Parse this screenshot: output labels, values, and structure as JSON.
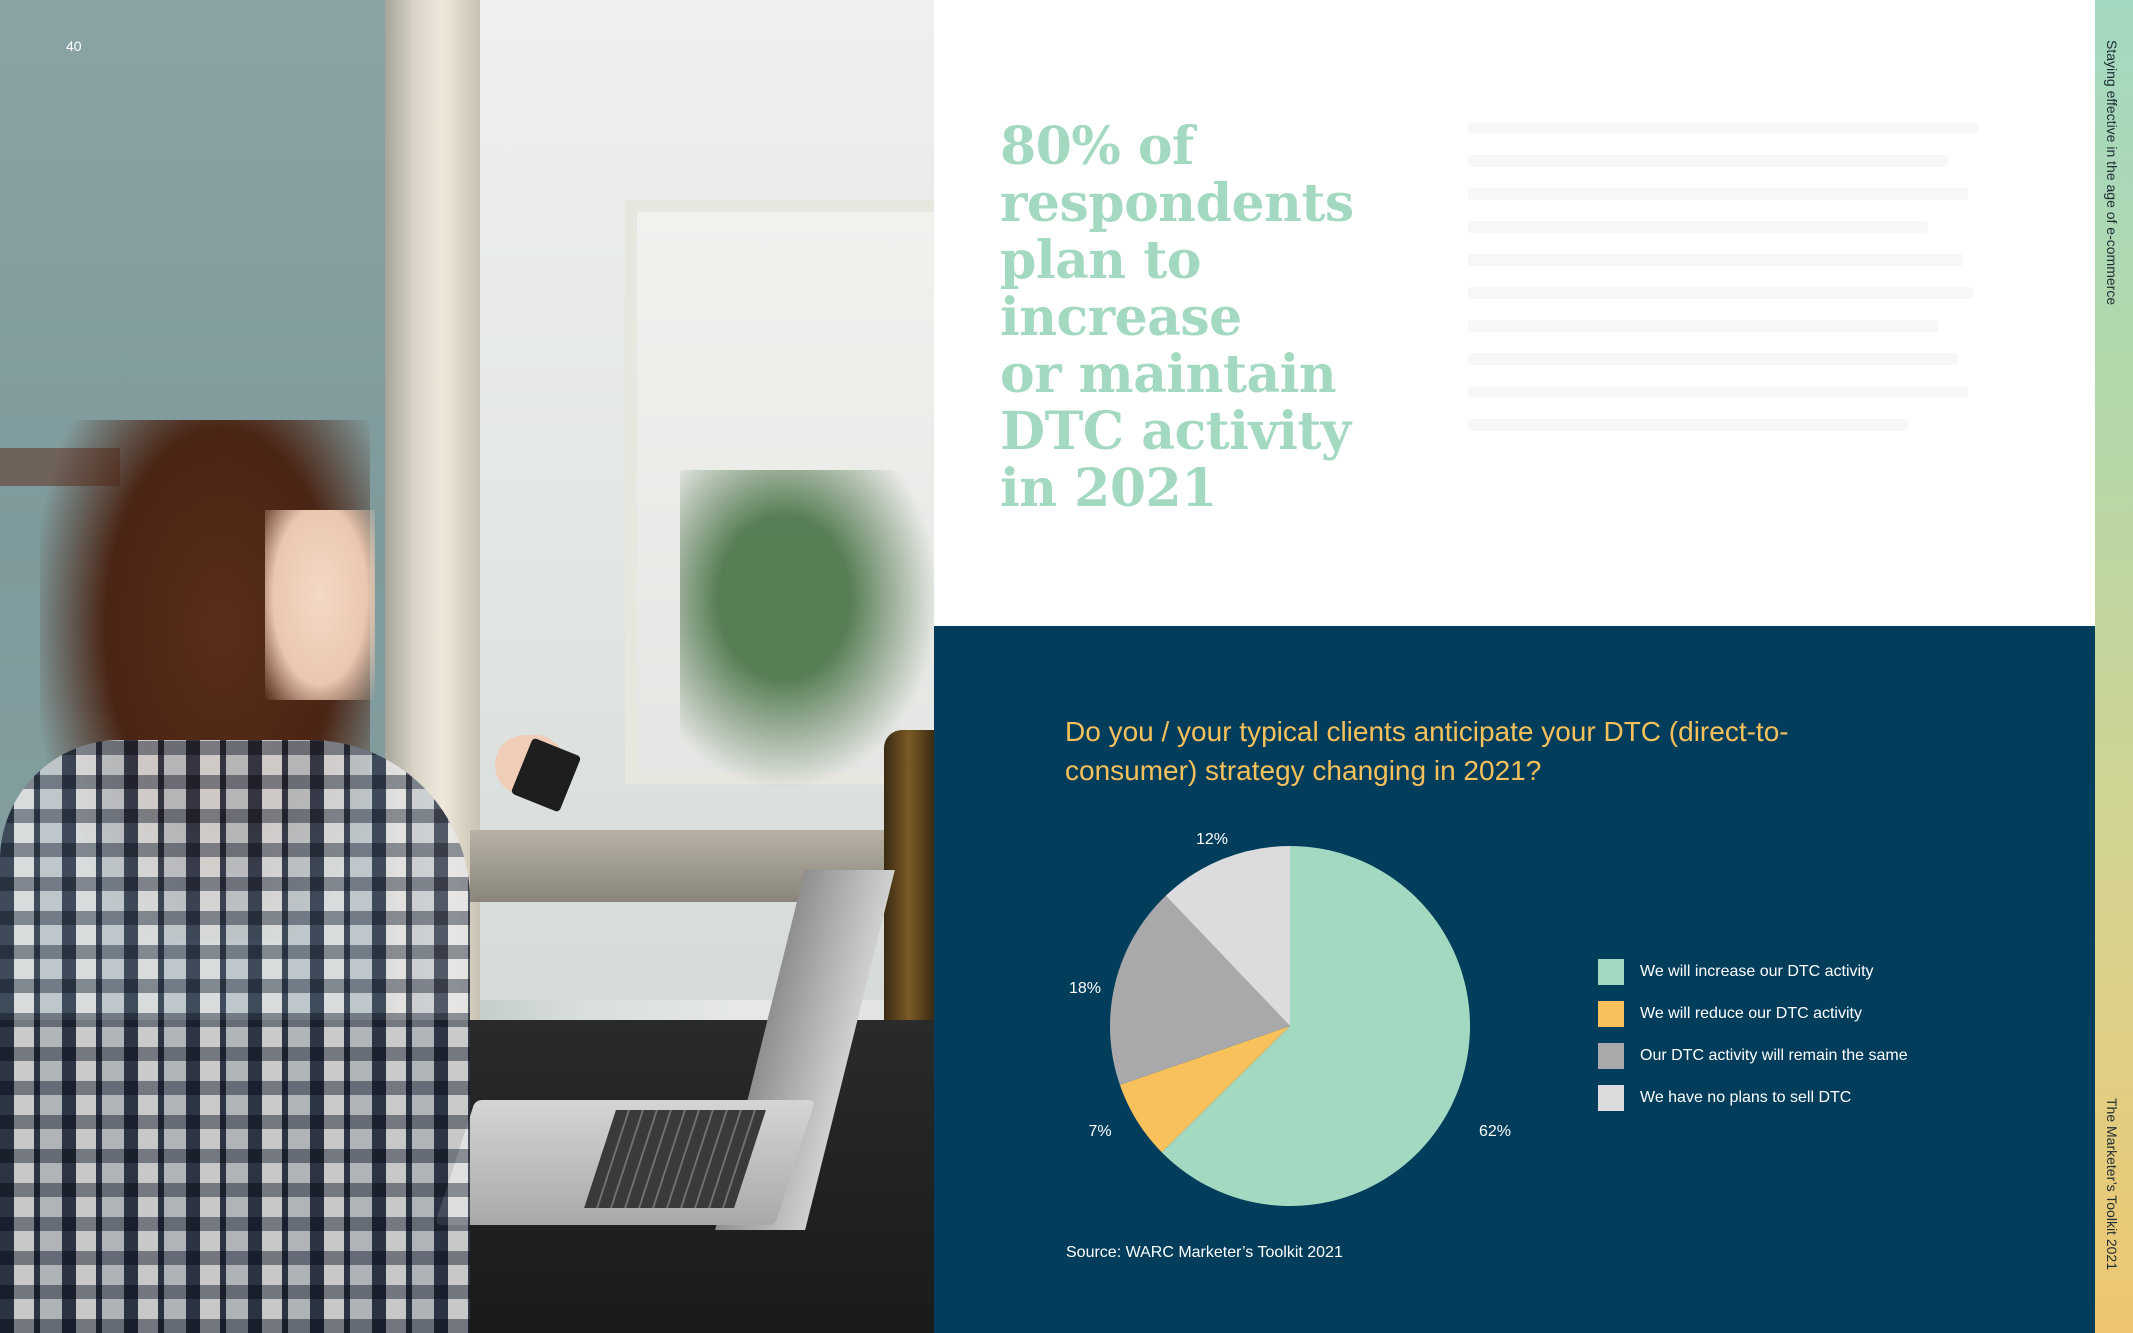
{
  "page_number": "40",
  "headline_lines": [
    "80% of",
    "respondents",
    "plan to increase",
    "or maintain",
    "DTC activity",
    "in 2021"
  ],
  "side_labels": {
    "top": "Staying effective in the age of e-commerce",
    "bottom": "The Marketer’s Toolkit 2021"
  },
  "source": "Source: WARC Marketer’s Toolkit 2021",
  "colors": {
    "headline": "#a3d9c1",
    "panel": "#023d5b",
    "question": "#f6c15b"
  },
  "chart_data": {
    "type": "pie",
    "title": "Do you / your typical clients anticipate your DTC (direct-to-consumer) strategy changing in 2021?",
    "legend_position": "right",
    "slices": [
      {
        "label": "We will increase our DTC activity",
        "value": 62,
        "display": "62%",
        "color": "#a3d9c1"
      },
      {
        "label": "We will reduce our DTC activity",
        "value": 7,
        "display": "7%",
        "color": "#f8c15c"
      },
      {
        "label": "Our DTC activity will remain the same",
        "value": 18,
        "display": "18%",
        "color": "#a9a9ab"
      },
      {
        "label": "We have no plans to sell DTC",
        "value": 12,
        "display": "12%",
        "color": "#dcdcde"
      }
    ]
  }
}
